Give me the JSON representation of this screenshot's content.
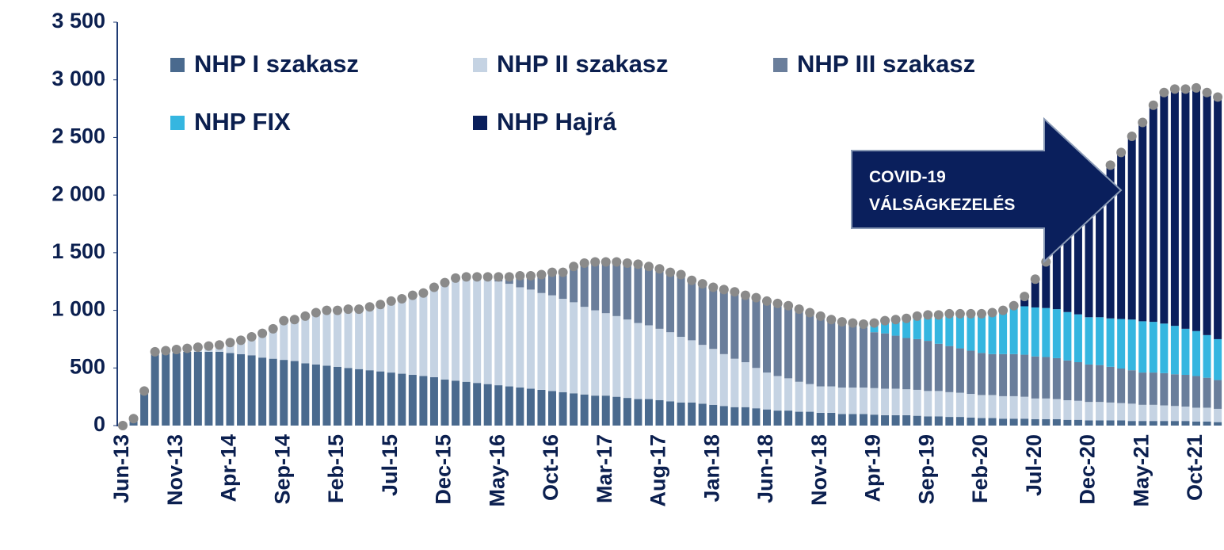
{
  "chart_data": {
    "type": "stacked_bar",
    "categories": [
      "Jun-13",
      null,
      null,
      null,
      null,
      "Nov-13",
      null,
      null,
      null,
      null,
      "Apr-14",
      null,
      null,
      null,
      null,
      "Sep-14",
      null,
      null,
      null,
      null,
      "Feb-15",
      null,
      null,
      null,
      null,
      "Jul-15",
      null,
      null,
      null,
      null,
      "Dec-15",
      null,
      null,
      null,
      null,
      "May-16",
      null,
      null,
      null,
      null,
      "Oct-16",
      null,
      null,
      null,
      null,
      "Mar-17",
      null,
      null,
      null,
      null,
      "Aug-17",
      null,
      null,
      null,
      null,
      "Jan-18",
      null,
      null,
      null,
      null,
      "Jun-18",
      null,
      null,
      null,
      null,
      "Nov-18",
      null,
      null,
      null,
      null,
      "Apr-19",
      null,
      null,
      null,
      null,
      "Sep-19",
      null,
      null,
      null,
      null,
      "Feb-20",
      null,
      null,
      null,
      null,
      "Jul-20",
      null,
      null,
      null,
      null,
      "Dec-20",
      null,
      null,
      null,
      null,
      "May-21",
      null,
      null,
      null,
      null,
      "Oct-21",
      null,
      null
    ],
    "series": [
      {
        "name": "NHP I szakasz",
        "color": "#4a6a8e",
        "values": [
          0,
          60,
          300,
          620,
          630,
          630,
          640,
          640,
          640,
          640,
          630,
          620,
          610,
          590,
          580,
          570,
          560,
          540,
          530,
          520,
          510,
          500,
          490,
          480,
          470,
          460,
          450,
          440,
          430,
          420,
          400,
          390,
          380,
          370,
          360,
          350,
          340,
          330,
          320,
          310,
          300,
          290,
          280,
          270,
          260,
          260,
          250,
          240,
          230,
          230,
          220,
          210,
          200,
          200,
          190,
          180,
          170,
          160,
          160,
          150,
          140,
          130,
          130,
          120,
          120,
          110,
          110,
          100,
          100,
          100,
          95,
          90,
          90,
          90,
          85,
          80,
          80,
          75,
          75,
          70,
          65,
          65,
          60,
          60,
          60,
          55,
          55,
          55,
          50,
          50,
          45,
          45,
          45,
          45,
          40,
          40,
          40,
          40,
          40,
          40,
          35,
          35,
          30
        ]
      },
      {
        "name": "NHP II szakasz",
        "color": "#c5d3e3",
        "values": [
          0,
          0,
          0,
          20,
          20,
          30,
          30,
          40,
          50,
          60,
          90,
          120,
          160,
          210,
          260,
          340,
          360,
          410,
          450,
          480,
          490,
          510,
          520,
          550,
          580,
          620,
          650,
          690,
          720,
          780,
          840,
          890,
          910,
          920,
          910,
          900,
          890,
          870,
          860,
          840,
          830,
          810,
          790,
          760,
          740,
          715,
          700,
          680,
          660,
          640,
          620,
          600,
          570,
          540,
          510,
          485,
          450,
          420,
          390,
          350,
          320,
          300,
          280,
          260,
          240,
          230,
          230,
          230,
          230,
          230,
          230,
          230,
          230,
          225,
          225,
          220,
          220,
          215,
          210,
          205,
          200,
          200,
          195,
          195,
          190,
          180,
          180,
          175,
          170,
          165,
          160,
          160,
          155,
          150,
          150,
          140,
          140,
          135,
          130,
          125,
          120,
          120,
          115
        ]
      },
      {
        "name": "NHP III szakasz",
        "color": "#6a7e9b",
        "values": [
          0,
          0,
          0,
          0,
          0,
          0,
          0,
          0,
          0,
          0,
          0,
          0,
          0,
          0,
          0,
          0,
          0,
          0,
          0,
          0,
          0,
          0,
          0,
          0,
          0,
          0,
          0,
          0,
          0,
          0,
          0,
          0,
          0,
          0,
          20,
          40,
          60,
          100,
          120,
          160,
          200,
          230,
          310,
          380,
          420,
          445,
          470,
          490,
          510,
          510,
          520,
          520,
          540,
          520,
          530,
          535,
          560,
          580,
          580,
          610,
          620,
          630,
          630,
          630,
          620,
          610,
          580,
          570,
          560,
          520,
          485,
          480,
          460,
          445,
          440,
          435,
          410,
          400,
          385,
          375,
          365,
          355,
          365,
          365,
          365,
          365,
          360,
          355,
          345,
          335,
          325,
          320,
          310,
          300,
          290,
          280,
          280,
          280,
          275,
          275,
          275,
          260,
          250
        ]
      },
      {
        "name": "NHP FIX",
        "color": "#35b6e0",
        "values": [
          0,
          0,
          0,
          0,
          0,
          0,
          0,
          0,
          0,
          0,
          0,
          0,
          0,
          0,
          0,
          0,
          0,
          0,
          0,
          0,
          0,
          0,
          0,
          0,
          0,
          0,
          0,
          0,
          0,
          0,
          0,
          0,
          0,
          0,
          0,
          0,
          0,
          0,
          0,
          0,
          0,
          0,
          0,
          0,
          0,
          0,
          0,
          0,
          0,
          0,
          0,
          0,
          0,
          0,
          0,
          0,
          0,
          0,
          0,
          0,
          0,
          0,
          0,
          0,
          0,
          0,
          0,
          0,
          0,
          30,
          80,
          110,
          140,
          170,
          200,
          225,
          250,
          280,
          300,
          320,
          340,
          360,
          380,
          400,
          420,
          425,
          425,
          425,
          420,
          415,
          410,
          415,
          420,
          430,
          440,
          445,
          440,
          430,
          420,
          400,
          390,
          370,
          355
        ]
      },
      {
        "name": "NHP Hajrá",
        "color": "#0a1f5c",
        "values": [
          0,
          0,
          0,
          0,
          0,
          0,
          0,
          0,
          0,
          0,
          0,
          0,
          0,
          0,
          0,
          0,
          0,
          0,
          0,
          0,
          0,
          0,
          0,
          0,
          0,
          0,
          0,
          0,
          0,
          0,
          0,
          0,
          0,
          0,
          0,
          0,
          0,
          0,
          0,
          0,
          0,
          0,
          0,
          0,
          0,
          0,
          0,
          0,
          0,
          0,
          0,
          0,
          0,
          0,
          0,
          0,
          0,
          0,
          0,
          0,
          0,
          0,
          0,
          0,
          0,
          0,
          0,
          0,
          0,
          0,
          0,
          0,
          0,
          0,
          0,
          0,
          0,
          0,
          0,
          0,
          0,
          0,
          0,
          20,
          85,
          245,
          400,
          570,
          735,
          915,
          1080,
          1200,
          1330,
          1445,
          1590,
          1725,
          1880,
          2005,
          2055,
          2080,
          2110,
          2105,
          2100
        ]
      }
    ],
    "ylim": [
      0,
      3500
    ],
    "yticks": [
      0,
      500,
      {
        "value": 1000,
        "label": "1 000"
      },
      {
        "value": 1500,
        "label": "1 500"
      },
      {
        "value": 2000,
        "label": "2 000"
      },
      {
        "value": 2500,
        "label": "2 500"
      },
      {
        "value": 3000,
        "label": "3 000"
      },
      {
        "value": 3500,
        "label": "3 500"
      }
    ],
    "grid": false,
    "total_marker_color": "#8a8a8a",
    "annotation": [
      "COVID-19",
      "VÁLSÁGKEZELÉS"
    ]
  }
}
